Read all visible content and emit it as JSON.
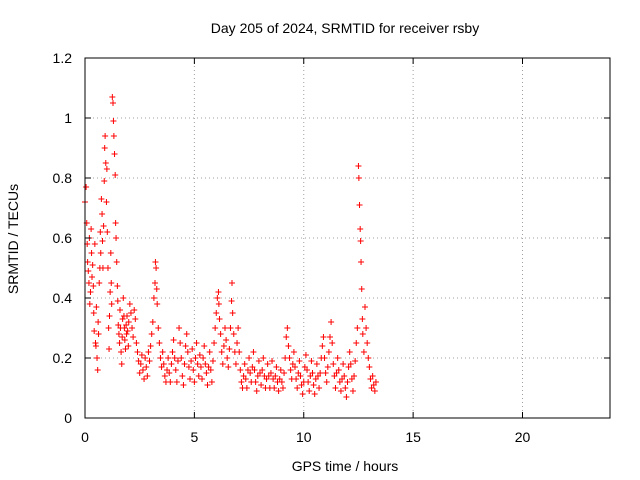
{
  "chart_data": {
    "type": "scatter",
    "title": "Day 205 of 2024, SRMTID for receiver rsby",
    "xlabel": "GPS time / hours",
    "ylabel": "SRMTID / TECUs",
    "xlim": [
      0,
      24
    ],
    "ylim": [
      0,
      1.2
    ],
    "x_ticks": [
      0,
      5,
      10,
      15,
      20
    ],
    "y_ticks": [
      0,
      0.2,
      0.4,
      0.6,
      0.8,
      1,
      1.2
    ],
    "x_tick_labels": [
      "0",
      "5",
      "10",
      "15",
      "20"
    ],
    "y_tick_labels": [
      "0",
      "0.2",
      "0.4",
      "0.6",
      "0.8",
      "1",
      "1.2"
    ],
    "grid": true,
    "marker": "+",
    "color": "#ff0000",
    "series": [
      {
        "name": "SRMTID",
        "points": [
          [
            0.0,
            0.72
          ],
          [
            0.05,
            0.77
          ],
          [
            0.08,
            0.65
          ],
          [
            0.1,
            0.58
          ],
          [
            0.12,
            0.52
          ],
          [
            0.15,
            0.49
          ],
          [
            0.18,
            0.45
          ],
          [
            0.2,
            0.6
          ],
          [
            0.22,
            0.38
          ],
          [
            0.25,
            0.42
          ],
          [
            0.28,
            0.63
          ],
          [
            0.3,
            0.55
          ],
          [
            0.32,
            0.47
          ],
          [
            0.35,
            0.51
          ],
          [
            0.38,
            0.44
          ],
          [
            0.4,
            0.35
          ],
          [
            0.42,
            0.29
          ],
          [
            0.45,
            0.58
          ],
          [
            0.48,
            0.25
          ],
          [
            0.5,
            0.24
          ],
          [
            0.52,
            0.37
          ],
          [
            0.55,
            0.2
          ],
          [
            0.58,
            0.16
          ],
          [
            0.6,
            0.32
          ],
          [
            0.62,
            0.28
          ],
          [
            0.65,
            0.45
          ],
          [
            0.68,
            0.5
          ],
          [
            0.7,
            0.62
          ],
          [
            0.72,
            0.55
          ],
          [
            0.75,
            0.73
          ],
          [
            0.78,
            0.68
          ],
          [
            0.8,
            0.59
          ],
          [
            0.82,
            0.5
          ],
          [
            0.85,
            0.64
          ],
          [
            0.88,
            0.79
          ],
          [
            0.9,
            0.9
          ],
          [
            0.92,
            0.94
          ],
          [
            0.95,
            0.85
          ],
          [
            0.98,
            0.72
          ],
          [
            1.0,
            0.83
          ],
          [
            1.02,
            0.62
          ],
          [
            1.05,
            0.5
          ],
          [
            1.08,
            0.3
          ],
          [
            1.1,
            0.23
          ],
          [
            1.12,
            0.34
          ],
          [
            1.15,
            0.42
          ],
          [
            1.18,
            0.55
          ],
          [
            1.2,
            0.45
          ],
          [
            1.22,
            0.38
          ],
          [
            1.25,
            1.07
          ],
          [
            1.28,
            1.05
          ],
          [
            1.3,
            0.99
          ],
          [
            1.32,
            0.94
          ],
          [
            1.35,
            0.88
          ],
          [
            1.38,
            0.81
          ],
          [
            1.4,
            0.65
          ],
          [
            1.42,
            0.6
          ],
          [
            1.45,
            0.52
          ],
          [
            1.48,
            0.44
          ],
          [
            1.5,
            0.39
          ],
          [
            1.52,
            0.31
          ],
          [
            1.55,
            0.28
          ],
          [
            1.58,
            0.25
          ],
          [
            1.6,
            0.36
          ],
          [
            1.62,
            0.3
          ],
          [
            1.65,
            0.22
          ],
          [
            1.68,
            0.18
          ],
          [
            1.7,
            0.27
          ],
          [
            1.72,
            0.33
          ],
          [
            1.75,
            0.4
          ],
          [
            1.78,
            0.34
          ],
          [
            1.8,
            0.3
          ],
          [
            1.82,
            0.26
          ],
          [
            1.85,
            0.23
          ],
          [
            1.88,
            0.31
          ],
          [
            1.9,
            0.28
          ],
          [
            1.92,
            0.34
          ],
          [
            1.95,
            0.29
          ],
          [
            1.98,
            0.24
          ],
          [
            2.0,
            0.32
          ],
          [
            2.05,
            0.38
          ],
          [
            2.1,
            0.35
          ],
          [
            2.15,
            0.3
          ],
          [
            2.2,
            0.27
          ],
          [
            2.25,
            0.36
          ],
          [
            2.3,
            0.33
          ],
          [
            2.35,
            0.25
          ],
          [
            2.4,
            0.22
          ],
          [
            2.45,
            0.19
          ],
          [
            2.5,
            0.15
          ],
          [
            2.55,
            0.18
          ],
          [
            2.6,
            0.21
          ],
          [
            2.65,
            0.16
          ],
          [
            2.7,
            0.13
          ],
          [
            2.75,
            0.2
          ],
          [
            2.8,
            0.17
          ],
          [
            2.85,
            0.14
          ],
          [
            2.9,
            0.22
          ],
          [
            2.95,
            0.19
          ],
          [
            3.0,
            0.24
          ],
          [
            3.05,
            0.28
          ],
          [
            3.1,
            0.32
          ],
          [
            3.15,
            0.4
          ],
          [
            3.2,
            0.45
          ],
          [
            3.22,
            0.52
          ],
          [
            3.25,
            0.5
          ],
          [
            3.28,
            0.43
          ],
          [
            3.3,
            0.38
          ],
          [
            3.35,
            0.3
          ],
          [
            3.4,
            0.25
          ],
          [
            3.45,
            0.2
          ],
          [
            3.5,
            0.17
          ],
          [
            3.55,
            0.22
          ],
          [
            3.6,
            0.18
          ],
          [
            3.65,
            0.14
          ],
          [
            3.7,
            0.12
          ],
          [
            3.75,
            0.16
          ],
          [
            3.8,
            0.2
          ],
          [
            3.85,
            0.15
          ],
          [
            3.9,
            0.12
          ],
          [
            3.95,
            0.18
          ],
          [
            4.0,
            0.22
          ],
          [
            4.05,
            0.26
          ],
          [
            4.1,
            0.2
          ],
          [
            4.15,
            0.16
          ],
          [
            4.2,
            0.12
          ],
          [
            4.25,
            0.19
          ],
          [
            4.3,
            0.3
          ],
          [
            4.35,
            0.25
          ],
          [
            4.4,
            0.2
          ],
          [
            4.45,
            0.14
          ],
          [
            4.5,
            0.11
          ],
          [
            4.55,
            0.18
          ],
          [
            4.6,
            0.24
          ],
          [
            4.65,
            0.28
          ],
          [
            4.7,
            0.22
          ],
          [
            4.75,
            0.17
          ],
          [
            4.8,
            0.13
          ],
          [
            4.85,
            0.19
          ],
          [
            4.9,
            0.23
          ],
          [
            4.95,
            0.16
          ],
          [
            5.0,
            0.12
          ],
          [
            5.05,
            0.2
          ],
          [
            5.1,
            0.25
          ],
          [
            5.15,
            0.18
          ],
          [
            5.2,
            0.14
          ],
          [
            5.25,
            0.21
          ],
          [
            5.3,
            0.17
          ],
          [
            5.35,
            0.13
          ],
          [
            5.4,
            0.2
          ],
          [
            5.45,
            0.24
          ],
          [
            5.5,
            0.18
          ],
          [
            5.55,
            0.15
          ],
          [
            5.6,
            0.11
          ],
          [
            5.65,
            0.17
          ],
          [
            5.7,
            0.22
          ],
          [
            5.75,
            0.16
          ],
          [
            5.8,
            0.12
          ],
          [
            5.85,
            0.19
          ],
          [
            5.9,
            0.25
          ],
          [
            5.95,
            0.3
          ],
          [
            6.0,
            0.35
          ],
          [
            6.05,
            0.4
          ],
          [
            6.1,
            0.42
          ],
          [
            6.12,
            0.38
          ],
          [
            6.15,
            0.33
          ],
          [
            6.2,
            0.28
          ],
          [
            6.25,
            0.22
          ],
          [
            6.3,
            0.18
          ],
          [
            6.35,
            0.24
          ],
          [
            6.4,
            0.3
          ],
          [
            6.45,
            0.26
          ],
          [
            6.5,
            0.2
          ],
          [
            6.55,
            0.17
          ],
          [
            6.6,
            0.23
          ],
          [
            6.65,
            0.3
          ],
          [
            6.7,
            0.39
          ],
          [
            6.72,
            0.45
          ],
          [
            6.75,
            0.35
          ],
          [
            6.8,
            0.28
          ],
          [
            6.85,
            0.22
          ],
          [
            6.9,
            0.18
          ],
          [
            6.95,
            0.25
          ],
          [
            7.0,
            0.3
          ],
          [
            7.05,
            0.22
          ],
          [
            7.1,
            0.16
          ],
          [
            7.15,
            0.12
          ],
          [
            7.2,
            0.1
          ],
          [
            7.25,
            0.14
          ],
          [
            7.3,
            0.18
          ],
          [
            7.35,
            0.13
          ],
          [
            7.4,
            0.1
          ],
          [
            7.45,
            0.16
          ],
          [
            7.5,
            0.2
          ],
          [
            7.55,
            0.15
          ],
          [
            7.6,
            0.12
          ],
          [
            7.65,
            0.17
          ],
          [
            7.7,
            0.22
          ],
          [
            7.75,
            0.16
          ],
          [
            7.8,
            0.12
          ],
          [
            7.85,
            0.09
          ],
          [
            7.9,
            0.14
          ],
          [
            7.95,
            0.19
          ],
          [
            8.0,
            0.15
          ],
          [
            8.05,
            0.11
          ],
          [
            8.1,
            0.16
          ],
          [
            8.15,
            0.2
          ],
          [
            8.2,
            0.14
          ],
          [
            8.25,
            0.1
          ],
          [
            8.3,
            0.13
          ],
          [
            8.35,
            0.18
          ],
          [
            8.4,
            0.14
          ],
          [
            8.45,
            0.1
          ],
          [
            8.5,
            0.15
          ],
          [
            8.55,
            0.19
          ],
          [
            8.6,
            0.13
          ],
          [
            8.65,
            0.1
          ],
          [
            8.7,
            0.14
          ],
          [
            8.75,
            0.17
          ],
          [
            8.8,
            0.12
          ],
          [
            8.85,
            0.09
          ],
          [
            8.9,
            0.13
          ],
          [
            8.95,
            0.16
          ],
          [
            9.0,
            0.12
          ],
          [
            9.05,
            0.1
          ],
          [
            9.1,
            0.15
          ],
          [
            9.15,
            0.2
          ],
          [
            9.2,
            0.27
          ],
          [
            9.25,
            0.3
          ],
          [
            9.3,
            0.24
          ],
          [
            9.35,
            0.2
          ],
          [
            9.4,
            0.16
          ],
          [
            9.45,
            0.13
          ],
          [
            9.5,
            0.18
          ],
          [
            9.55,
            0.22
          ],
          [
            9.6,
            0.17
          ],
          [
            9.65,
            0.13
          ],
          [
            9.7,
            0.1
          ],
          [
            9.75,
            0.15
          ],
          [
            9.8,
            0.19
          ],
          [
            9.85,
            0.14
          ],
          [
            9.9,
            0.11
          ],
          [
            9.95,
            0.08
          ],
          [
            10.0,
            0.12
          ],
          [
            10.05,
            0.17
          ],
          [
            10.1,
            0.21
          ],
          [
            10.15,
            0.16
          ],
          [
            10.2,
            0.12
          ],
          [
            10.25,
            0.09
          ],
          [
            10.3,
            0.14
          ],
          [
            10.35,
            0.19
          ],
          [
            10.4,
            0.15
          ],
          [
            10.45,
            0.11
          ],
          [
            10.5,
            0.08
          ],
          [
            10.55,
            0.13
          ],
          [
            10.6,
            0.18
          ],
          [
            10.65,
            0.14
          ],
          [
            10.7,
            0.1
          ],
          [
            10.75,
            0.15
          ],
          [
            10.8,
            0.2
          ],
          [
            10.85,
            0.24
          ],
          [
            10.9,
            0.27
          ],
          [
            10.95,
            0.2
          ],
          [
            11.0,
            0.15
          ],
          [
            11.05,
            0.12
          ],
          [
            11.1,
            0.17
          ],
          [
            11.15,
            0.22
          ],
          [
            11.2,
            0.27
          ],
          [
            11.25,
            0.32
          ],
          [
            11.3,
            0.25
          ],
          [
            11.35,
            0.18
          ],
          [
            11.4,
            0.14
          ],
          [
            11.45,
            0.1
          ],
          [
            11.5,
            0.15
          ],
          [
            11.55,
            0.2
          ],
          [
            11.6,
            0.16
          ],
          [
            11.65,
            0.12
          ],
          [
            11.7,
            0.09
          ],
          [
            11.75,
            0.13
          ],
          [
            11.8,
            0.18
          ],
          [
            11.85,
            0.14
          ],
          [
            11.9,
            0.1
          ],
          [
            11.95,
            0.07
          ],
          [
            12.0,
            0.12
          ],
          [
            12.05,
            0.17
          ],
          [
            12.1,
            0.22
          ],
          [
            12.15,
            0.18
          ],
          [
            12.2,
            0.13
          ],
          [
            12.25,
            0.09
          ],
          [
            12.3,
            0.14
          ],
          [
            12.35,
            0.19
          ],
          [
            12.4,
            0.25
          ],
          [
            12.45,
            0.3
          ],
          [
            12.5,
            0.84
          ],
          [
            12.52,
            0.8
          ],
          [
            12.55,
            0.71
          ],
          [
            12.58,
            0.63
          ],
          [
            12.6,
            0.59
          ],
          [
            12.62,
            0.52
          ],
          [
            12.65,
            0.43
          ],
          [
            12.68,
            0.33
          ],
          [
            12.7,
            0.28
          ],
          [
            12.75,
            0.22
          ],
          [
            12.8,
            0.37
          ],
          [
            12.85,
            0.3
          ],
          [
            12.9,
            0.25
          ],
          [
            12.95,
            0.2
          ],
          [
            13.0,
            0.17
          ],
          [
            13.05,
            0.13
          ],
          [
            13.1,
            0.1
          ],
          [
            13.15,
            0.14
          ],
          [
            13.2,
            0.11
          ],
          [
            13.25,
            0.09
          ],
          [
            13.3,
            0.12
          ]
        ]
      }
    ]
  }
}
